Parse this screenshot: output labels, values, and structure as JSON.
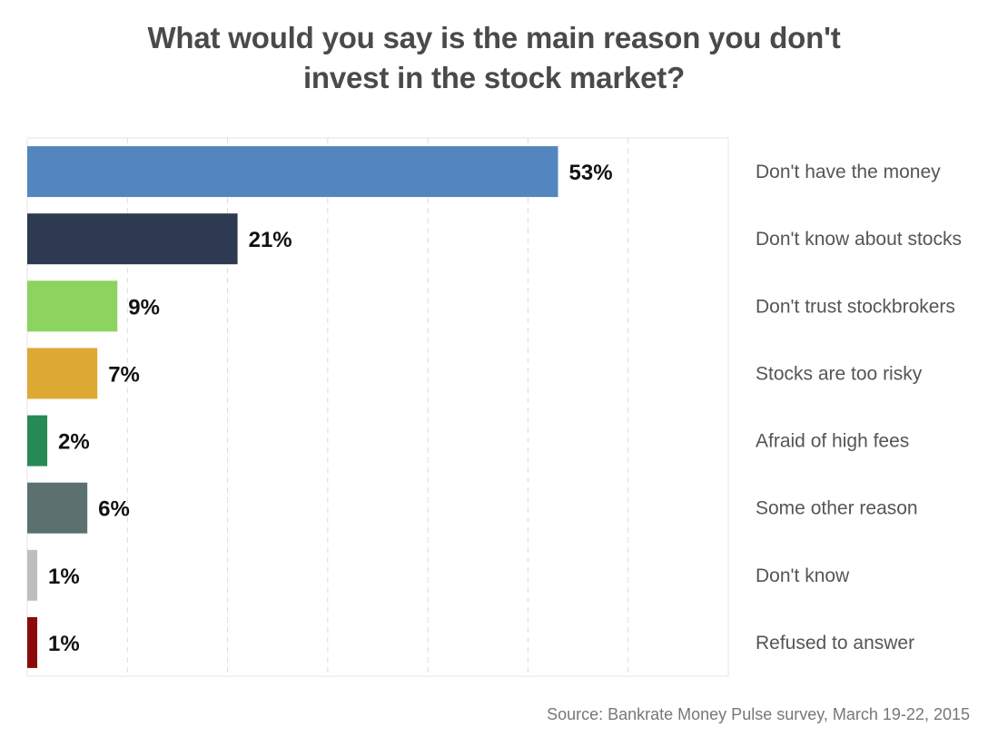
{
  "chart_data": {
    "type": "bar",
    "orientation": "horizontal",
    "title_lines": [
      "What would you say is the main reason you don't",
      "invest in the stock market?"
    ],
    "categories": [
      "Don't have the money",
      "Don't know about stocks",
      "Don't trust stockbrokers",
      "Stocks are too risky",
      "Afraid of high fees",
      "Some other reason",
      "Don't know",
      "Refused to answer"
    ],
    "values": [
      53,
      21,
      9,
      7,
      2,
      6,
      1,
      1
    ],
    "value_labels": [
      "53%",
      "21%",
      "9%",
      "7%",
      "2%",
      "6%",
      "1%",
      "1%"
    ],
    "colors": [
      "#5386BE",
      "#2E3A52",
      "#8DD35F",
      "#DDA833",
      "#268A57",
      "#5A716F",
      "#BEBEBE",
      "#8B0A0A"
    ],
    "xlim": [
      0,
      70
    ],
    "grid": true,
    "category_label_position": "right",
    "source": "Source: Bankrate Money Pulse survey, March 19-22, 2015"
  }
}
